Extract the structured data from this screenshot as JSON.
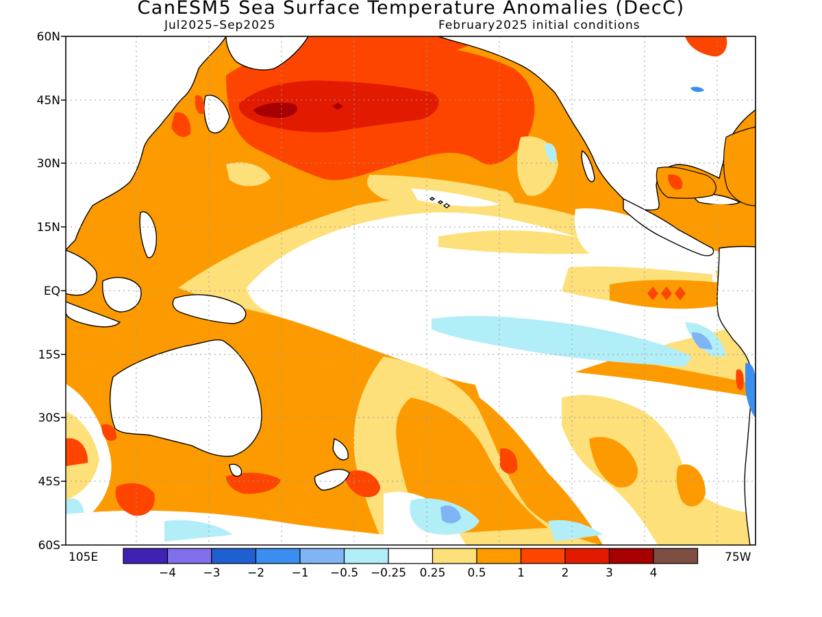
{
  "title": "CanESM5 Sea Surface Temperature Anomalies (DecC)",
  "subtitle_left": "Jul2025–Sep2025",
  "subtitle_right": "February2025 initial conditions",
  "lat_labels": [
    "60N",
    "45N",
    "30N",
    "15N",
    "EQ",
    "15S",
    "30S",
    "45S",
    "60S"
  ],
  "lon_labels": {
    "left": "105E",
    "right": "75W"
  },
  "colorbar": {
    "colors": [
      "#3f22b3",
      "#7f6fea",
      "#1e5fd1",
      "#3a8ef0",
      "#7fb5f5",
      "#b2eef7",
      "#ffffff",
      "#fde07a",
      "#fd9a00",
      "#fd4500",
      "#e21a00",
      "#a60000",
      "#7e4e42"
    ],
    "tick_labels": [
      "−4",
      "−3",
      "−2",
      "−1",
      "−0.5",
      "−0.25",
      "0.25",
      "0.5",
      "1",
      "2",
      "3",
      "4"
    ]
  },
  "palette": {
    "lightblue": "#b2eef7",
    "blue": "#7fb5f5",
    "yellow": "#fde07a",
    "orange": "#fd9a00",
    "red": "#fd4500",
    "darkred": "#e21a00",
    "darkest": "#a60000",
    "land": "#ffffff"
  }
}
